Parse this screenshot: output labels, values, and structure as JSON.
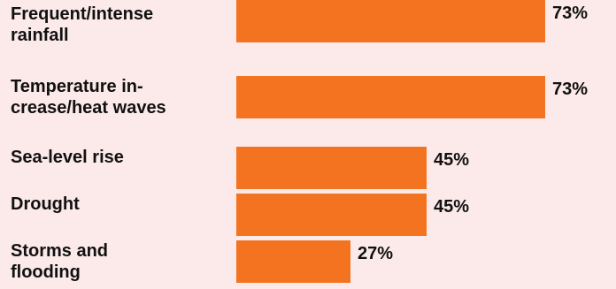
{
  "colors": {
    "background": "#fce9e9",
    "bar": "#f47321",
    "text": "#111111"
  },
  "chart_data": {
    "type": "bar",
    "orientation": "horizontal",
    "categories": [
      "Frequent/intense\nrainfall",
      "Temperature in-\ncrease/heat waves",
      "Sea-level rise",
      "Drought",
      "Storms and\nflooding"
    ],
    "values": [
      73,
      73,
      45,
      45,
      27
    ],
    "value_labels": [
      "73%",
      "73%",
      "45%",
      "45%",
      "27%"
    ],
    "xlim": [
      0,
      73
    ],
    "grid": false,
    "legend": "none"
  }
}
